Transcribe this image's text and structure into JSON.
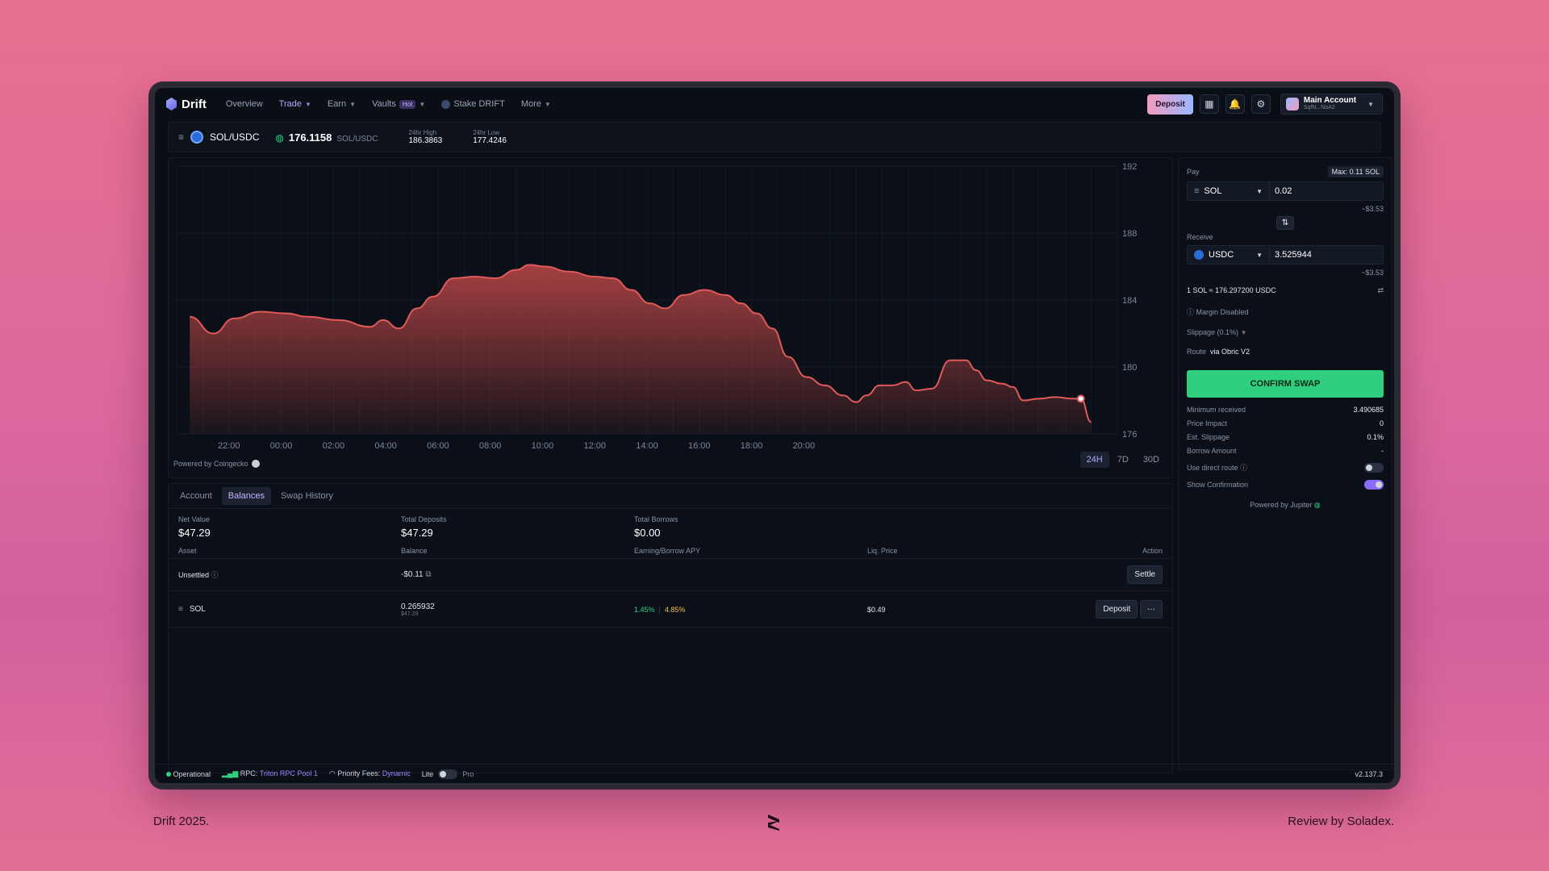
{
  "header": {
    "logo": "Drift",
    "nav": [
      {
        "label": "Overview"
      },
      {
        "label": "Trade"
      },
      {
        "label": "Earn"
      },
      {
        "label": "Vaults",
        "badge": "Hot"
      },
      {
        "label": "Stake DRIFT"
      },
      {
        "label": "More"
      }
    ],
    "deposit_label": "Deposit",
    "account_name": "Main Account",
    "account_sub": "SqfN...NoA2"
  },
  "market": {
    "pair": "SOL/USDC",
    "price": "176.1158",
    "price_unit": "SOL/USDC",
    "high_label": "24hr High",
    "high_value": "186.3863",
    "low_label": "24hr Low",
    "low_value": "177.4246"
  },
  "chart_data": {
    "type": "area",
    "title": "",
    "xlabel": "",
    "ylabel": "",
    "x_ticks": [
      "22:00",
      "00:00",
      "02:00",
      "04:00",
      "06:00",
      "08:00",
      "10:00",
      "12:00",
      "14:00",
      "16:00",
      "18:00",
      "20:00"
    ],
    "y_ticks": [
      192,
      188,
      184,
      180,
      176
    ],
    "ylim": [
      176,
      192
    ],
    "x_hours": [
      -23.5,
      -22.6,
      -21.8,
      -20.8,
      -19.8,
      -19.0,
      -17.8,
      -16.6,
      -16.1,
      -15.5,
      -14.8,
      -14.2,
      -13.4,
      -12.6,
      -11.8,
      -11.0,
      -10.5,
      -9.9,
      -9.0,
      -8.0,
      -7.3,
      -6.6,
      -5.9,
      -5.3,
      -4.6,
      -3.8,
      -3.0,
      -2.4,
      -1.8,
      -1.2,
      -0.6,
      0.1,
      0.8,
      1.5,
      2.0,
      2.4,
      2.9,
      3.4,
      3.9,
      4.3,
      4.9,
      5.6,
      6.2,
      6.6,
      7.0,
      7.6,
      8.0,
      8.4,
      9.0,
      9.6,
      10.3,
      10.6,
      11.0
    ],
    "values": [
      183.0,
      182.0,
      182.9,
      183.3,
      183.2,
      183.0,
      182.8,
      182.4,
      182.8,
      182.3,
      183.5,
      184.2,
      185.3,
      185.4,
      185.3,
      185.8,
      186.1,
      186.0,
      185.7,
      185.4,
      185.3,
      184.6,
      183.8,
      183.5,
      184.3,
      184.6,
      184.3,
      183.8,
      183.2,
      182.3,
      180.6,
      179.4,
      178.9,
      178.3,
      177.9,
      178.3,
      178.9,
      178.9,
      179.1,
      178.6,
      178.7,
      180.4,
      180.4,
      179.8,
      179.2,
      179.0,
      178.8,
      178.0,
      178.1,
      178.2,
      178.1,
      178.1,
      176.7
    ],
    "line_color": "#e05a5a",
    "fill_color": "#c04848"
  },
  "chart_footer": {
    "powered_by": "Powered by Coingecko",
    "timeframes": [
      "24H",
      "7D",
      "30D"
    ]
  },
  "bottom_tabs": [
    "Account",
    "Balances",
    "Swap History"
  ],
  "totals": [
    {
      "label": "Net Value",
      "value": "$47.29"
    },
    {
      "label": "Total Deposits",
      "value": "$47.29"
    },
    {
      "label": "Total Borrows",
      "value": "$0.00"
    }
  ],
  "table": {
    "headers": [
      "Asset",
      "Balance",
      "Earning/Borrow APY",
      "Liq. Price",
      "Action"
    ],
    "unsettled": {
      "asset": "Unsettled",
      "balance": "-$0.11",
      "action": "Settle"
    },
    "sol": {
      "asset": "SOL",
      "balance": "0.265932",
      "balance_usd": "$47.29",
      "apy_earn": "1.45%",
      "apy_borrow": "4.85%",
      "liq_price": "$0.49",
      "action": "Deposit",
      "more": "···"
    }
  },
  "swap": {
    "pay_label": "Pay",
    "max_label": "Max: 0.11 SOL",
    "pay_token": "SOL",
    "pay_amount": "0.02",
    "pay_usd": "~$3.53",
    "receive_label": "Receive",
    "receive_token": "USDC",
    "receive_amount": "3.525944",
    "receive_usd": "~$3.53",
    "rate": "1 SOL ≈ 176.297200 USDC",
    "margin": "Margin Disabled",
    "slippage": "Slippage (0.1%)",
    "route_label": "Route",
    "route_value": "via Obric V2",
    "confirm": "CONFIRM SWAP",
    "details": [
      {
        "label": "Minimum received",
        "value": "3.490685"
      },
      {
        "label": "Price Impact",
        "value": "0"
      },
      {
        "label": "Est. Slippage",
        "value": "0.1%"
      },
      {
        "label": "Borrow Amount",
        "value": "-"
      }
    ],
    "direct_route": "Use direct route",
    "show_confirmation": "Show Confirmation",
    "powered_by": "Powered by Jupiter"
  },
  "footer": {
    "status": "Operational",
    "rpc_label": "RPC:",
    "rpc_value": "Triton RPC Pool 1",
    "fees_label": "Priority Fees:",
    "fees_value": "Dynamic",
    "lite": "Lite",
    "pro": "Pro",
    "version": "v2.137.3"
  },
  "captions": {
    "left": "Drift 2025.",
    "right": "Review by Soladex."
  }
}
